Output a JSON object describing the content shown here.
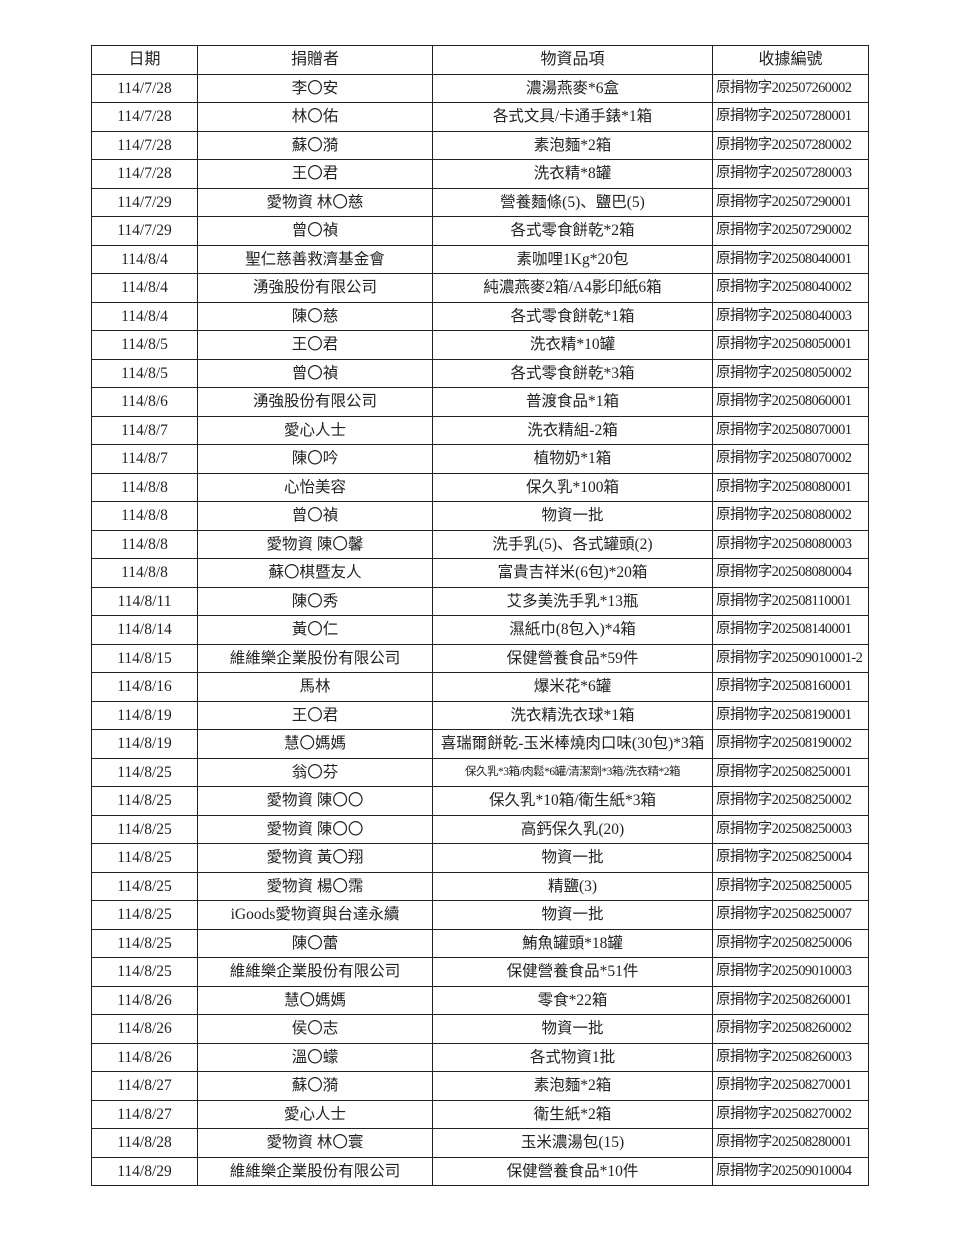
{
  "headers": [
    "日期",
    "捐贈者",
    "物資品項",
    "收據編號"
  ],
  "rows": [
    [
      "114/7/28",
      "李〇安",
      "濃湯燕麥*6盒",
      "原捐物字202507260002"
    ],
    [
      "114/7/28",
      "林〇佑",
      "各式文具/卡通手錶*1箱",
      "原捐物字202507280001"
    ],
    [
      "114/7/28",
      "蘇〇漪",
      "素泡麵*2箱",
      "原捐物字202507280002"
    ],
    [
      "114/7/28",
      "王〇君",
      "洗衣精*8罐",
      "原捐物字202507280003"
    ],
    [
      "114/7/29",
      "愛物資 林〇慈",
      "營養麵條(5)、鹽巴(5)",
      "原捐物字202507290001"
    ],
    [
      "114/7/29",
      "曾〇禎",
      "各式零食餅乾*2箱",
      "原捐物字202507290002"
    ],
    [
      "114/8/4",
      "聖仁慈善救濟基金會",
      "素咖哩1Kg*20包",
      "原捐物字202508040001"
    ],
    [
      "114/8/4",
      "湧強股份有限公司",
      "純濃燕麥2箱/A4影印紙6箱",
      "原捐物字202508040002"
    ],
    [
      "114/8/4",
      "陳〇慈",
      "各式零食餅乾*1箱",
      "原捐物字202508040003"
    ],
    [
      "114/8/5",
      "王〇君",
      "洗衣精*10罐",
      "原捐物字202508050001"
    ],
    [
      "114/8/5",
      "曾〇禎",
      "各式零食餅乾*3箱",
      "原捐物字202508050002"
    ],
    [
      "114/8/6",
      "湧強股份有限公司",
      "普渡食品*1箱",
      "原捐物字202508060001"
    ],
    [
      "114/8/7",
      "愛心人士",
      "洗衣精組-2箱",
      "原捐物字202508070001"
    ],
    [
      "114/8/7",
      "陳〇吟",
      "植物奶*1箱",
      "原捐物字202508070002"
    ],
    [
      "114/8/8",
      "心怡美容",
      "保久乳*100箱",
      "原捐物字202508080001"
    ],
    [
      "114/8/8",
      "曾〇禎",
      "物資一批",
      "原捐物字202508080002"
    ],
    [
      "114/8/8",
      "愛物資 陳〇馨",
      "洗手乳(5)、各式罐頭(2)",
      "原捐物字202508080003"
    ],
    [
      "114/8/8",
      "蘇〇棋暨友人",
      "富貴吉祥米(6包)*20箱",
      "原捐物字202508080004"
    ],
    [
      "114/8/11",
      "陳〇秀",
      "艾多美洗手乳*13瓶",
      "原捐物字202508110001"
    ],
    [
      "114/8/14",
      "黃〇仁",
      "濕紙巾(8包入)*4箱",
      "原捐物字202508140001"
    ],
    [
      "114/8/15",
      "維維樂企業股份有限公司",
      "保健營養食品*59件",
      "原捐物字202509010001-2"
    ],
    [
      "114/8/16",
      "馬林",
      "爆米花*6罐",
      "原捐物字202508160001"
    ],
    [
      "114/8/19",
      "王〇君",
      "洗衣精洗衣球*1箱",
      "原捐物字202508190001"
    ],
    [
      "114/8/19",
      "慧〇媽媽",
      "喜瑞爾餅乾-玉米棒燒肉口味(30包)*3箱",
      "原捐物字202508190002"
    ],
    [
      "114/8/25",
      "翁〇芬",
      "保久乳*3箱/肉鬆*6罐/清潔劑*3箱/洗衣精*2箱",
      "原捐物字202508250001"
    ],
    [
      "114/8/25",
      "愛物資 陳〇〇",
      "保久乳*10箱/衛生紙*3箱",
      "原捐物字202508250002"
    ],
    [
      "114/8/25",
      "愛物資 陳〇〇",
      "高鈣保久乳(20)",
      "原捐物字202508250003"
    ],
    [
      "114/8/25",
      "愛物資 黃〇翔",
      "物資一批",
      "原捐物字202508250004"
    ],
    [
      "114/8/25",
      "愛物資 楊〇霈",
      "精鹽(3)",
      "原捐物字202508250005"
    ],
    [
      "114/8/25",
      "iGoods愛物資與台達永續",
      "物資一批",
      "原捐物字202508250007"
    ],
    [
      "114/8/25",
      "陳〇蕾",
      "鮪魚罐頭*18罐",
      "原捐物字202508250006"
    ],
    [
      "114/8/25",
      "維維樂企業股份有限公司",
      "保健營養食品*51件",
      "原捐物字202509010003"
    ],
    [
      "114/8/26",
      "慧〇媽媽",
      "零食*22箱",
      "原捐物字202508260001"
    ],
    [
      "114/8/26",
      "侯〇志",
      "物資一批",
      "原捐物字202508260002"
    ],
    [
      "114/8/26",
      "溫〇蠓",
      "各式物資1批",
      "原捐物字202508260003"
    ],
    [
      "114/8/27",
      "蘇〇漪",
      "素泡麵*2箱",
      "原捐物字202508270001"
    ],
    [
      "114/8/27",
      "愛心人士",
      "衛生紙*2箱",
      "原捐物字202508270002"
    ],
    [
      "114/8/28",
      "愛物資 林〇寰",
      "玉米濃湯包(15)",
      "原捐物字202508280001"
    ],
    [
      "114/8/29",
      "維維樂企業股份有限公司",
      "保健營養食品*10件",
      "原捐物字202509010004"
    ]
  ]
}
